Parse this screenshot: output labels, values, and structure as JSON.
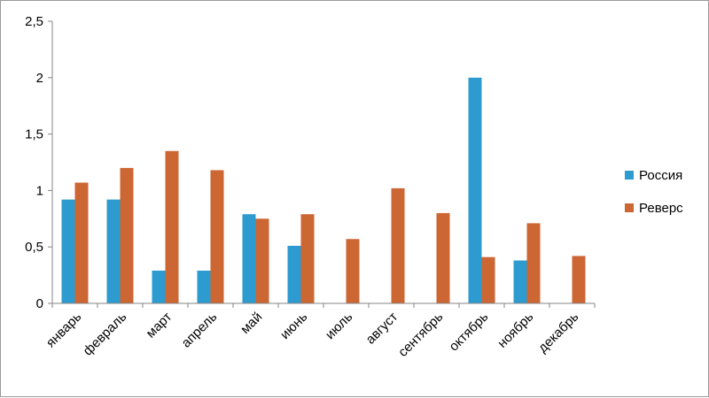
{
  "chart_data": {
    "type": "bar",
    "categories": [
      "январь",
      "февраль",
      "март",
      "апрель",
      "май",
      "июнь",
      "июль",
      "август",
      "сентябрь",
      "октябрь",
      "ноябрь",
      "декабрь"
    ],
    "series": [
      {
        "name": "Россия",
        "color": "#2e9bd0",
        "values": [
          0.92,
          0.92,
          0.29,
          0.29,
          0.79,
          0.51,
          null,
          null,
          null,
          2.0,
          0.38,
          null
        ]
      },
      {
        "name": "Реверс",
        "color": "#cc6633",
        "values": [
          1.07,
          1.2,
          1.35,
          1.18,
          0.75,
          0.79,
          0.57,
          1.02,
          0.8,
          0.41,
          0.71,
          0.42
        ]
      }
    ],
    "yticks": [
      "0",
      "0,5",
      "1",
      "1,5",
      "2",
      "2,5"
    ],
    "ylim": [
      0,
      2.5
    ],
    "grid": false,
    "legend": "right"
  }
}
